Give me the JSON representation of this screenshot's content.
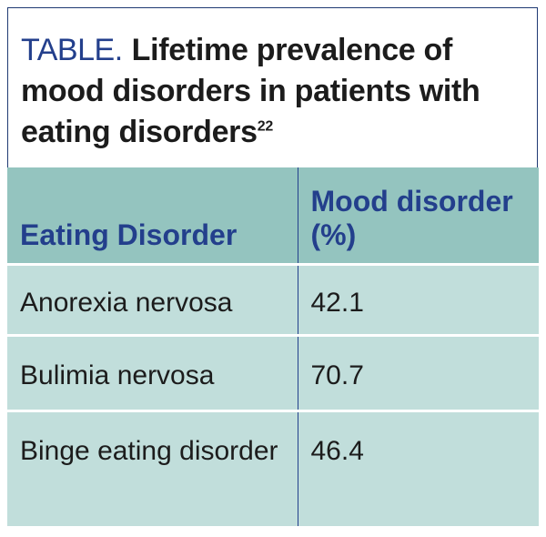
{
  "title": {
    "label": "TABLE.",
    "text": "Lifetime prevalence of mood disorders in patients with eating disorders",
    "reference": "22"
  },
  "table": {
    "headers": [
      "Eating Disorder",
      "Mood disorder (%)"
    ],
    "rows": [
      [
        "Anorexia nervosa",
        "42.1"
      ],
      [
        "Bulimia nervosa",
        "70.7"
      ],
      [
        "Binge eating disorder",
        "46.4"
      ]
    ]
  },
  "colors": {
    "title_label": "#233f8c",
    "header_background": "#94c4bf",
    "body_background": "#c1dedb",
    "divider": "#233f8c"
  }
}
